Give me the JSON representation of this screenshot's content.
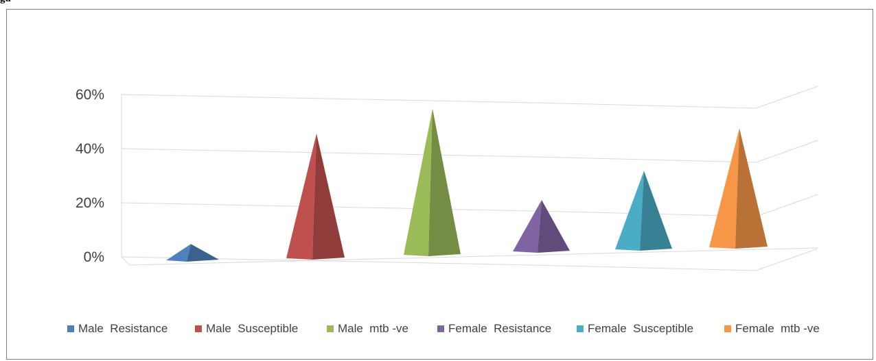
{
  "caption": "gu",
  "chart_data": {
    "type": "bar",
    "style": "3d-pyramid",
    "categories": [
      "Male  Resistance",
      "Male  Susceptible",
      "Male  mtb -ve",
      "Female  Resistance",
      "Female  Susceptible",
      "Female  mtb -ve"
    ],
    "values": [
      6,
      46,
      54,
      19,
      29,
      44
    ],
    "colors": [
      "#4f81bd",
      "#c0504d",
      "#9bbb59",
      "#8064a2",
      "#4bacc6",
      "#f79646"
    ],
    "y_ticks": [
      "0%",
      "20%",
      "40%",
      "60%"
    ],
    "ylim": [
      0,
      60
    ],
    "grid": true,
    "legend_position": "bottom",
    "title": "",
    "xlabel": "",
    "ylabel": ""
  }
}
